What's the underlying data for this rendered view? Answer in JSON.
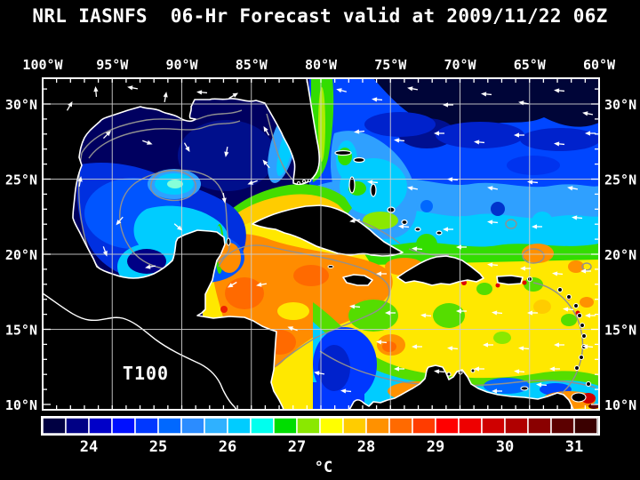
{
  "title": "NRL IASNFS  06-Hr Forecast valid at 2009/11/22 06Z",
  "axes": {
    "lon_ticks": [
      "100°W",
      "95°W",
      "90°W",
      "85°W",
      "80°W",
      "75°W",
      "70°W",
      "65°W",
      "60°W"
    ],
    "lat_ticks": [
      "30°N",
      "25°N",
      "20°N",
      "15°N",
      "10°N"
    ]
  },
  "map": {
    "overlay_label": "T100"
  },
  "colorbar": {
    "unit": "°C",
    "tick_labels": [
      "24",
      "25",
      "26",
      "27",
      "28",
      "29",
      "30",
      "31"
    ],
    "cell_colors": [
      "#000042",
      "#000085",
      "#0000c8",
      "#0010ff",
      "#0038ff",
      "#0068ff",
      "#2b8cff",
      "#2fb1ff",
      "#00ccff",
      "#00ffee",
      "#00dd00",
      "#8ae800",
      "#ffff00",
      "#ffcc00",
      "#ff9100",
      "#ff6a00",
      "#ff3c00",
      "#ff0000",
      "#ee0000",
      "#cf0000",
      "#b00000",
      "#8a0000",
      "#5c0000",
      "#3a0000"
    ]
  }
}
